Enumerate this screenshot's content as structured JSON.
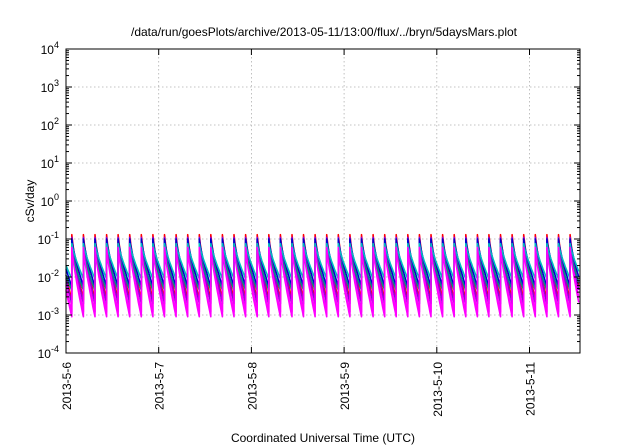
{
  "chart_data": {
    "type": "line",
    "title": "/data/run/goesPlots/archive/2013-05-11/13:00/flux/../bryn/5daysMars.plot",
    "xlabel": "Coordinated Universal Time (UTC)",
    "ylabel": "cSv/day",
    "yscale": "log",
    "ylim": [
      0.0001,
      10000
    ],
    "xlim": [
      "2013-05-06",
      "2013-05-11 13:00"
    ],
    "grid": true,
    "legend": "none",
    "x_tick_labels": [
      "2013-5-6",
      "2013-5-7",
      "2013-5-8",
      "2013-5-9",
      "2013-5-10",
      "2013-5-11"
    ],
    "y_tick_labels": [
      {
        "base": "10",
        "exp": "-4",
        "value": 0.0001
      },
      {
        "base": "10",
        "exp": "-3",
        "value": 0.001
      },
      {
        "base": "10",
        "exp": "-2",
        "value": 0.01
      },
      {
        "base": "10",
        "exp": "-1",
        "value": 0.1
      },
      {
        "base": "10",
        "exp": "0",
        "value": 1
      },
      {
        "base": "10",
        "exp": "1",
        "value": 10
      },
      {
        "base": "10",
        "exp": "2",
        "value": 100
      },
      {
        "base": "10",
        "exp": "3",
        "value": 1000
      },
      {
        "base": "10",
        "exp": "4",
        "value": 10000
      }
    ],
    "sawtooth": {
      "period_hours": 3,
      "first_peak_hours": 1.5,
      "days_total": 5.54
    },
    "series": [
      {
        "color": "#ff00ff",
        "peak": 0.085,
        "trough": 0.0012
      },
      {
        "color": "#ff0000",
        "peak": 0.13,
        "trough": 0.0025
      },
      {
        "color": "#9400d3",
        "peak": 0.11,
        "trough": 0.002
      },
      {
        "color": "#0000cd",
        "peak": 0.1,
        "trough": 0.0055
      },
      {
        "color": "#00bfbf",
        "peak": 0.075,
        "trough": 0.009
      },
      {
        "color": "#008b8b",
        "peak": 0.05,
        "trough": 0.0045
      },
      {
        "color": "#ff00ff",
        "peak": 0.06,
        "trough": 0.0009
      }
    ]
  }
}
